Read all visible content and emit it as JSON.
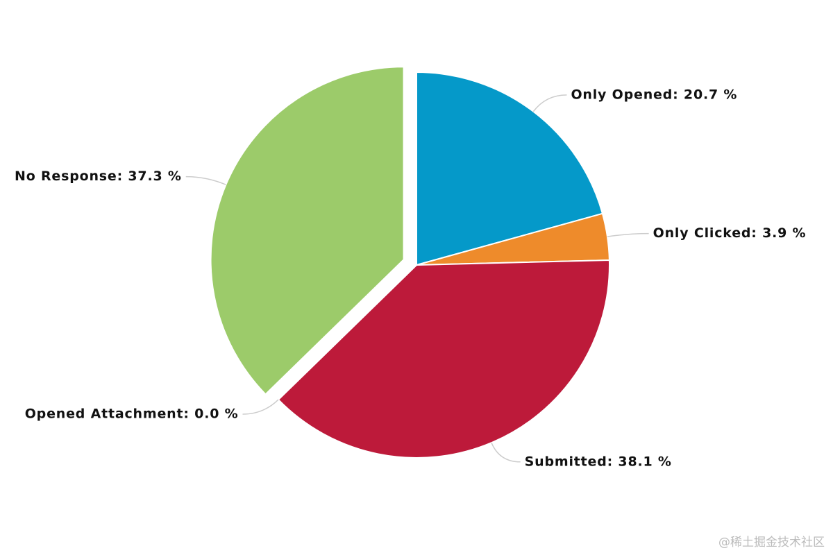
{
  "chart_data": {
    "type": "pie",
    "values": [
      20.7,
      3.9,
      38.1,
      0.0,
      37.3
    ],
    "value_labels": [
      "Only Opened: 20.7 %",
      "Only Clicked: 3.9 %",
      "Submitted: 38.1 %",
      "Opened Attachment: 0.0 %",
      "No Response: 37.3 %"
    ],
    "colors": [
      "#0599c9",
      "#ee8b2b",
      "#bd1a3a",
      "#7b4f9d",
      "#9ccb6a"
    ],
    "exploded": [
      false,
      false,
      false,
      false,
      true
    ]
  },
  "watermark": "@稀土掘金技术社区"
}
